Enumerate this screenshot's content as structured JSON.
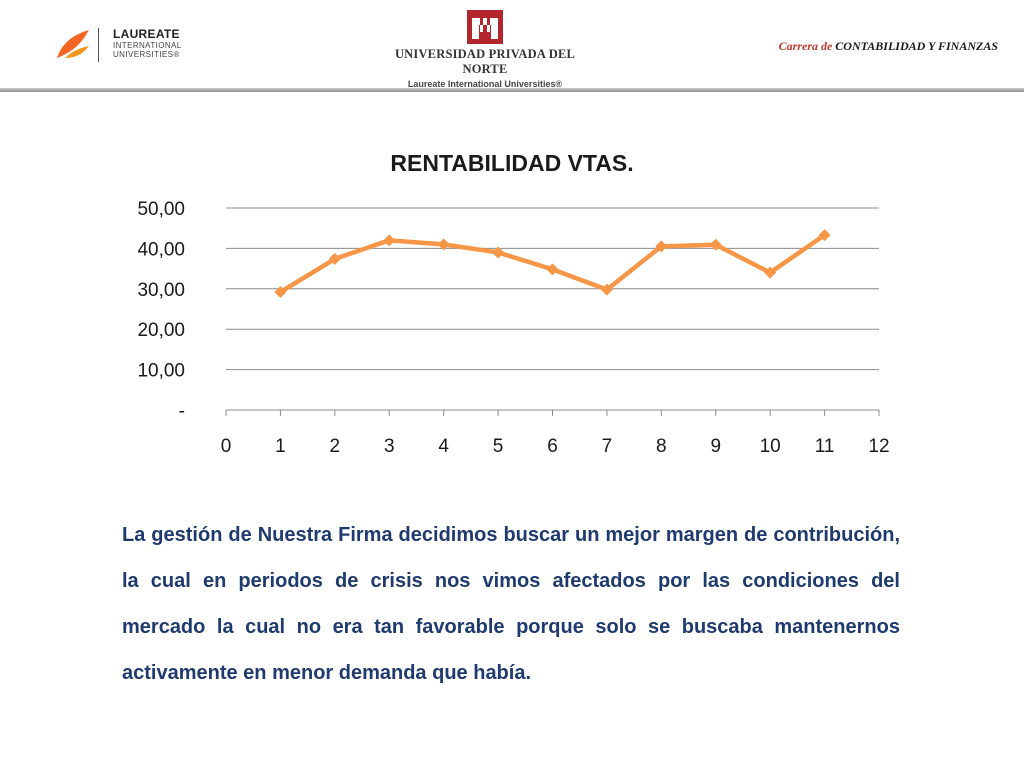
{
  "header": {
    "laureate_logo": {
      "word": "LAUREATE",
      "sub": "INTERNATIONAL\nUNIVERSITIES®",
      "color": "#f26522"
    },
    "upn_logo": {
      "name": "UNIVERSIDAD PRIVADA DEL NORTE",
      "sub": "Laureate International Universities®",
      "color": "#b3262b"
    },
    "career_prefix": "Carrera de",
    "career_name": "CONTABILIDAD Y FINANZAS"
  },
  "chart_data": {
    "type": "line",
    "title": "RENTABILIDAD VTAS.",
    "x": [
      1,
      2,
      3,
      4,
      5,
      6,
      7,
      8,
      9,
      10,
      11
    ],
    "series": [
      {
        "values": [
          29.2,
          37.4,
          42.0,
          41.0,
          39.0,
          34.8,
          29.8,
          40.5,
          40.9,
          34.0,
          43.3
        ],
        "color": "#f79646"
      }
    ],
    "xlim": [
      0,
      12
    ],
    "ylim": [
      0,
      50
    ],
    "x_ticks": [
      "0",
      "1",
      "2",
      "3",
      "4",
      "5",
      "6",
      "7",
      "8",
      "9",
      "10",
      "11",
      "12"
    ],
    "y_ticks": [
      "-",
      "10,00",
      "20,00",
      "30,00",
      "40,00",
      "50,00"
    ],
    "grid": true,
    "legend": "none"
  },
  "body": {
    "text": "La gestión de Nuestra Firma decidimos buscar un mejor margen de contribución, la cual en periodos de crisis nos vimos afectados por las condiciones del mercado la cual no era tan favorable porque solo se buscaba mantenernos activamente en menor demanda que había."
  }
}
